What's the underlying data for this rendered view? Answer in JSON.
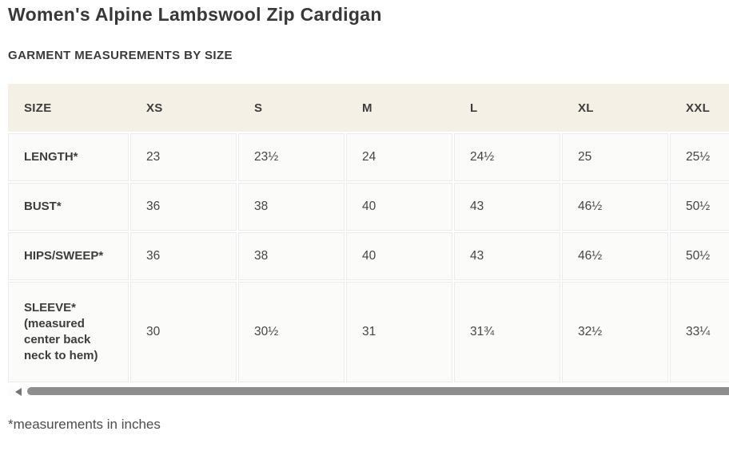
{
  "page": {
    "title": "Women's Alpine Lambswool Zip Cardigan",
    "section_heading": "GARMENT MEASUREMENTS BY SIZE",
    "footnote": "*measurements in inches"
  },
  "table": {
    "headers": [
      "SIZE",
      "XS",
      "S",
      "M",
      "L",
      "XL",
      "XXL"
    ],
    "rows": [
      {
        "label": "LENGTH*",
        "values": [
          "23",
          "23½",
          "24",
          "24½",
          "25",
          "25½"
        ]
      },
      {
        "label": "BUST*",
        "values": [
          "36",
          "38",
          "40",
          "43",
          "46½",
          "50½"
        ]
      },
      {
        "label": "HIPS/SWEEP*",
        "values": [
          "36",
          "38",
          "40",
          "43",
          "46½",
          "50½"
        ]
      },
      {
        "label": "SLEEVE* (measured center back neck to hem)",
        "values": [
          "30",
          "30½",
          "31",
          "31¾",
          "32½",
          "33¼"
        ]
      }
    ]
  },
  "scrollbar": {
    "orientation": "horizontal",
    "left_arrow_icon": "left-triangle"
  },
  "colors": {
    "header_bg": "#f4f0e6",
    "cell_bg": "#fbfbfa",
    "cell_border": "#ececec",
    "scrollbar_thumb": "#8d8d8d",
    "text": "#3d3d3d"
  }
}
